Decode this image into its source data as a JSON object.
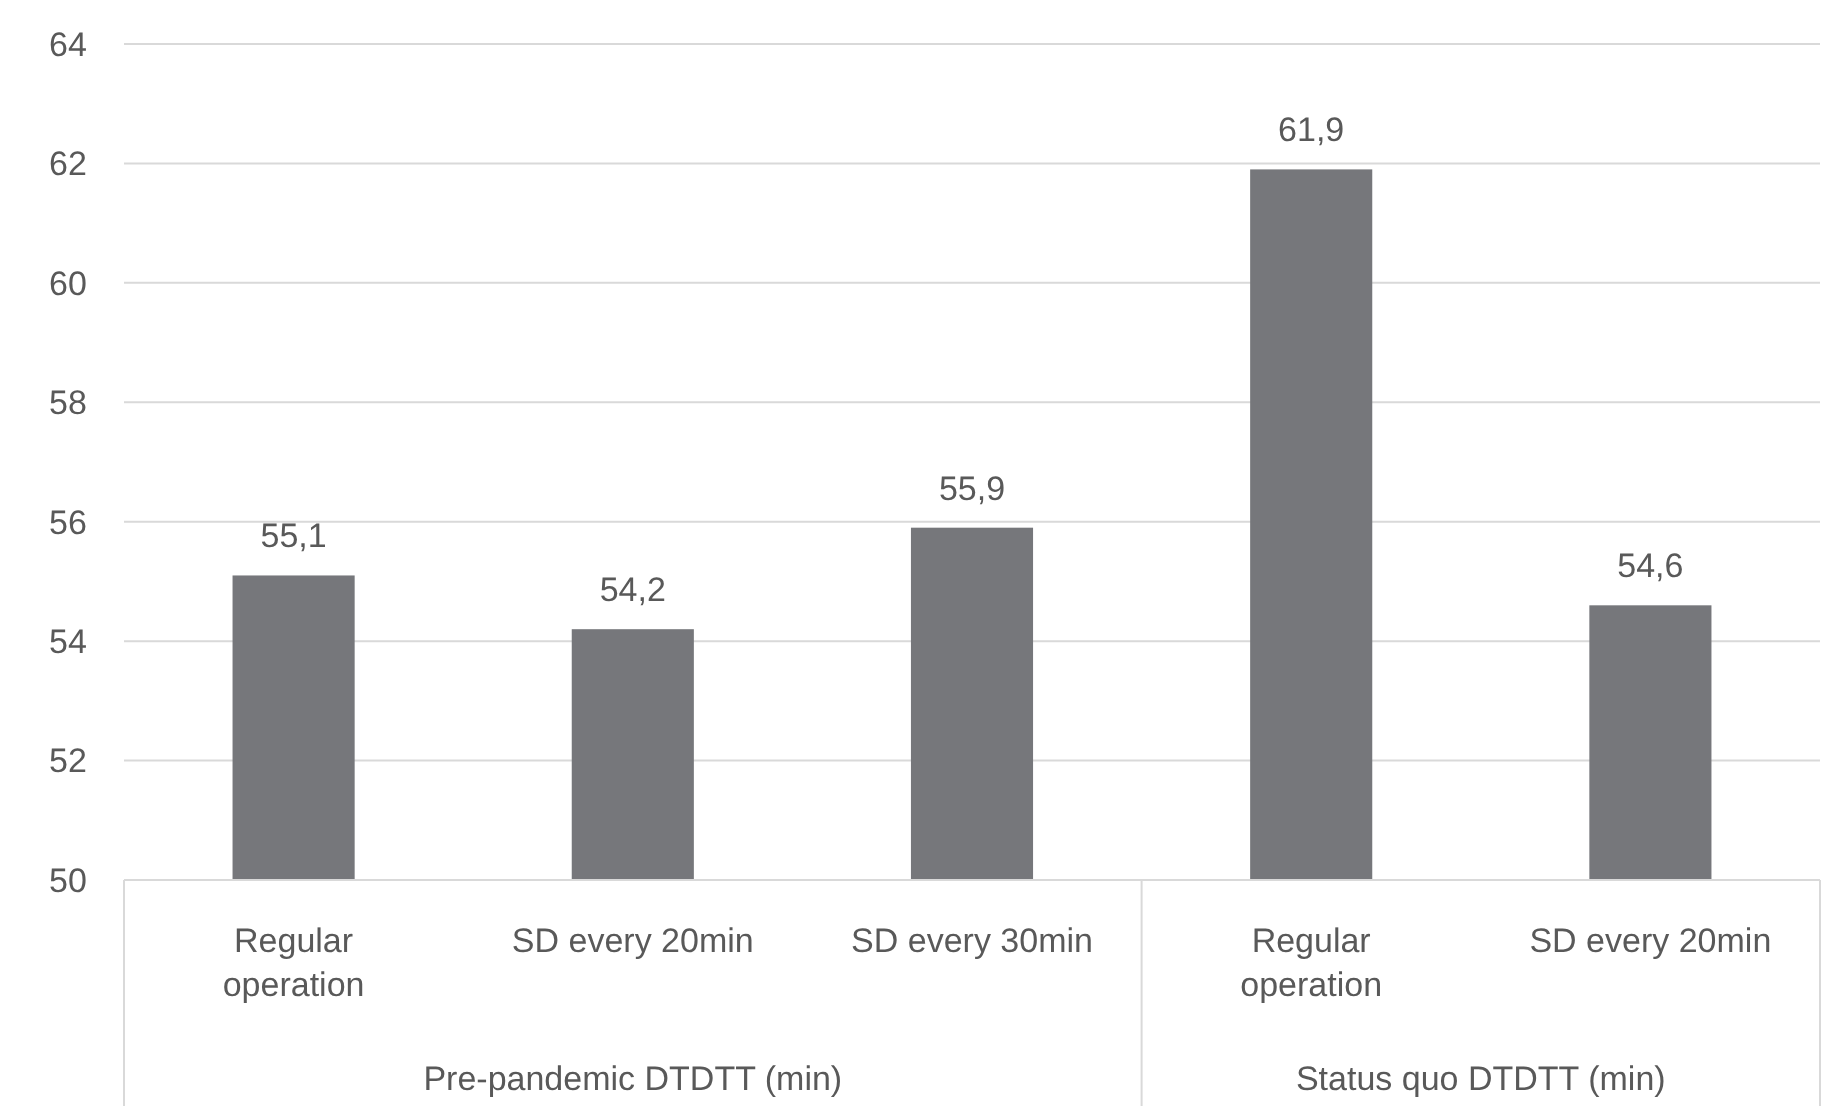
{
  "chart_data": {
    "type": "bar",
    "categories": [
      "Regular operation",
      "SD every 20min",
      "SD every 30min",
      "Regular operation",
      "SD every 20min"
    ],
    "values": [
      55.1,
      54.2,
      55.9,
      61.9,
      54.6
    ],
    "value_labels": [
      "55,1",
      "54,2",
      "55,9",
      "61,9",
      "54,6"
    ],
    "color": "#76777b",
    "ylim": [
      50,
      64
    ],
    "yticks": [
      50,
      52,
      54,
      56,
      58,
      60,
      62,
      64
    ],
    "grid": "y",
    "annotations": [
      "Pre-pandemic DTDTT (min)",
      "Status quo DTDTT (min)"
    ]
  }
}
